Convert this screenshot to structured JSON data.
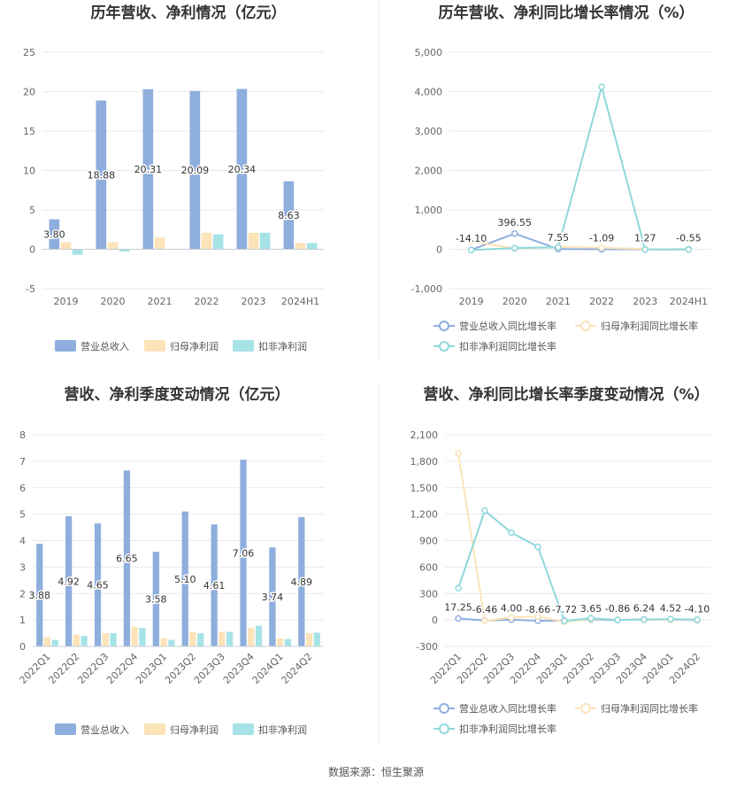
{
  "source_note": "数据来源：恒生聚源",
  "colors": {
    "revenue": "#8eaedd",
    "net_profit": "#fce3b8",
    "deducted_profit": "#a6e3e6",
    "line_revenue": "#8eaedd",
    "line_net": "#fce3b8",
    "line_deducted": "#8ed8dc",
    "grid": "#e6e9ee",
    "divider": "#eeeeee"
  },
  "chart_data": [
    {
      "type": "bar",
      "title": "历年营收、净利情况（亿元）",
      "categories": [
        "2019",
        "2020",
        "2021",
        "2022",
        "2023",
        "2024H1"
      ],
      "ylim": [
        -5,
        25
      ],
      "yticks": [
        "25",
        "20",
        "15",
        "10",
        "5",
        "0",
        "-5"
      ],
      "ytick_values": [
        25,
        20,
        15,
        10,
        5,
        0,
        -5
      ],
      "series": [
        {
          "name": "营业总收入",
          "values": [
            3.8,
            18.88,
            20.31,
            20.09,
            20.34,
            8.63
          ],
          "labels": [
            "3.80",
            "18.88",
            "20.31",
            "20.09",
            "20.34",
            "8.63"
          ]
        },
        {
          "name": "归母净利润",
          "values": [
            0.9,
            0.9,
            1.5,
            2.1,
            2.1,
            0.8
          ]
        },
        {
          "name": "扣非净利润",
          "values": [
            -0.7,
            -0.3,
            0,
            1.9,
            2.1,
            0.8
          ]
        }
      ],
      "legend": "bottom"
    },
    {
      "type": "line",
      "title": "历年营收、净利同比增长率情况（%）",
      "categories": [
        "2019",
        "2020",
        "2021",
        "2022",
        "2023",
        "2024H1"
      ],
      "ylim": [
        -1000,
        5000
      ],
      "yticks": [
        "5,000",
        "4,000",
        "3,000",
        "2,000",
        "1,000",
        "0",
        "-1,000"
      ],
      "ytick_values": [
        5000,
        4000,
        3000,
        2000,
        1000,
        0,
        -1000
      ],
      "series": [
        {
          "name": "营业总收入同比增长率",
          "values": [
            -14.1,
            396.55,
            7.55,
            -1.09,
            1.27,
            -0.55
          ],
          "labels": [
            "-14.10",
            "396.55",
            "7.55",
            "-1.09",
            "1.27",
            "-0.55"
          ]
        },
        {
          "name": "归母净利润同比增长率",
          "values": [
            200,
            20,
            60,
            40,
            5,
            -10
          ]
        },
        {
          "name": "扣非净利润同比增长率",
          "values": [
            -20,
            30,
            50,
            4120,
            -5,
            -5
          ]
        }
      ],
      "legend": "bottom"
    },
    {
      "type": "bar",
      "title": "营收、净利季度变动情况（亿元）",
      "categories": [
        "2022Q1",
        "2022Q2",
        "2022Q3",
        "2022Q4",
        "2023Q1",
        "2023Q2",
        "2023Q3",
        "2023Q4",
        "2024Q1",
        "2024Q2"
      ],
      "ylim": [
        0,
        8
      ],
      "yticks": [
        "8",
        "7",
        "6",
        "5",
        "4",
        "3",
        "2",
        "1",
        "0"
      ],
      "ytick_values": [
        8,
        7,
        6,
        5,
        4,
        3,
        2,
        1,
        0
      ],
      "series": [
        {
          "name": "营业总收入",
          "values": [
            3.88,
            4.92,
            4.65,
            6.65,
            3.58,
            5.1,
            4.61,
            7.06,
            3.74,
            4.89
          ],
          "labels": [
            "3.88",
            "4.92",
            "4.65",
            "6.65",
            "3.58",
            "5.10",
            "4.61",
            "7.06",
            "3.74",
            "4.89"
          ]
        },
        {
          "name": "归母净利润",
          "values": [
            0.35,
            0.45,
            0.5,
            0.75,
            0.3,
            0.55,
            0.55,
            0.7,
            0.3,
            0.5
          ]
        },
        {
          "name": "扣非净利润",
          "values": [
            0.25,
            0.4,
            0.5,
            0.7,
            0.25,
            0.5,
            0.55,
            0.78,
            0.28,
            0.52
          ]
        }
      ],
      "legend": "bottom"
    },
    {
      "type": "line",
      "title": "营收、净利同比增长率季度变动情况（%）",
      "categories": [
        "2022Q1",
        "2022Q2",
        "2022Q3",
        "2022Q4",
        "2023Q1",
        "2023Q2",
        "2023Q3",
        "2023Q4",
        "2024Q1",
        "2024Q2"
      ],
      "ylim": [
        -300,
        2100
      ],
      "yticks": [
        "2,100",
        "1,800",
        "1,500",
        "1,200",
        "900",
        "600",
        "300",
        "0",
        "-300"
      ],
      "ytick_values": [
        2100,
        1800,
        1500,
        1200,
        900,
        600,
        300,
        0,
        -300
      ],
      "series": [
        {
          "name": "营业总收入同比增长率",
          "values": [
            17.25,
            -6.46,
            4.0,
            -8.66,
            -7.72,
            3.65,
            -0.86,
            6.24,
            4.52,
            -4.1
          ],
          "labels": [
            "17.25",
            "-6.46",
            "4.00",
            "-8.66",
            "-7.72",
            "3.65",
            "-0.86",
            "6.24",
            "4.52",
            "-4.10"
          ]
        },
        {
          "name": "归母净利润同比增长率",
          "values": [
            1890,
            -10,
            30,
            40,
            -20,
            10,
            5,
            0,
            5,
            0
          ]
        },
        {
          "name": "扣非净利润同比增长率",
          "values": [
            360,
            1240,
            990,
            830,
            -10,
            20,
            0,
            5,
            10,
            5
          ]
        }
      ],
      "legend": "bottom"
    }
  ]
}
